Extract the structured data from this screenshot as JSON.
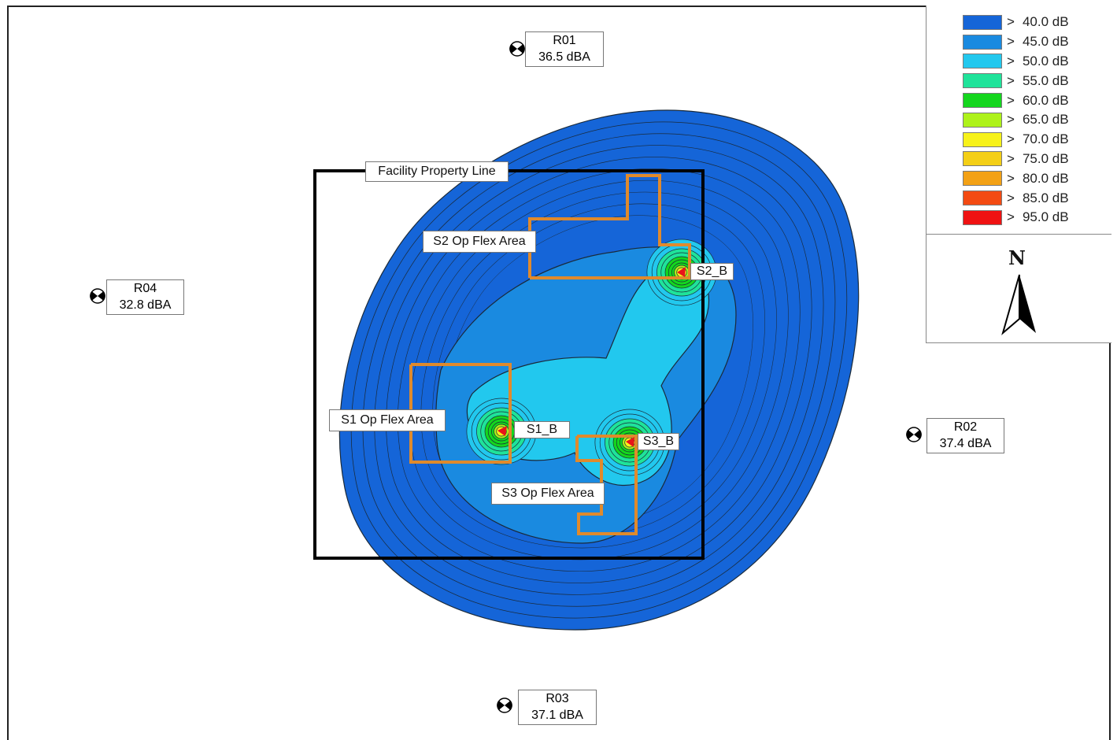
{
  "map": {
    "property_line_label": "Facility Property Line",
    "flex_areas": [
      {
        "id": "s1",
        "label": "S1 Op Flex Area"
      },
      {
        "id": "s2",
        "label": "S2 Op Flex Area"
      },
      {
        "id": "s3",
        "label": "S3 Op Flex Area"
      }
    ],
    "sources": [
      {
        "id": "s1",
        "label": "S1_B"
      },
      {
        "id": "s2",
        "label": "S2_B"
      },
      {
        "id": "s3",
        "label": "S3_B"
      }
    ],
    "receptors": [
      {
        "id": "r01",
        "name": "R01",
        "level": "36.5 dBA"
      },
      {
        "id": "r02",
        "name": "R02",
        "level": "37.4 dBA"
      },
      {
        "id": "r03",
        "name": "R03",
        "level": "37.1 dBA"
      },
      {
        "id": "r04",
        "name": "R04",
        "level": "32.8 dBA"
      }
    ],
    "colors": {
      "property_line": "#000000",
      "flex_area_outline": "#e08a2c",
      "source_marker": "#e8141a",
      "contour_line": "#1a2a3a"
    }
  },
  "legend": {
    "entries": [
      {
        "gt": ">",
        "value": "40.0 dB",
        "color": "#1565d8"
      },
      {
        "gt": ">",
        "value": "45.0 dB",
        "color": "#1a8ae0"
      },
      {
        "gt": ">",
        "value": "50.0 dB",
        "color": "#22c8ee"
      },
      {
        "gt": ">",
        "value": "55.0 dB",
        "color": "#1fe39a"
      },
      {
        "gt": ">",
        "value": "60.0 dB",
        "color": "#14d61e"
      },
      {
        "gt": ">",
        "value": "65.0 dB",
        "color": "#aef21a"
      },
      {
        "gt": ">",
        "value": "70.0 dB",
        "color": "#f7f21a"
      },
      {
        "gt": ">",
        "value": "75.0 dB",
        "color": "#f4cf16"
      },
      {
        "gt": ">",
        "value": "80.0 dB",
        "color": "#f3a115"
      },
      {
        "gt": ">",
        "value": "85.0 dB",
        "color": "#f34a12"
      },
      {
        "gt": ">",
        "value": "95.0 dB",
        "color": "#ef1212"
      }
    ],
    "north_letter": "N",
    "north_icon": "north-arrow-icon"
  }
}
